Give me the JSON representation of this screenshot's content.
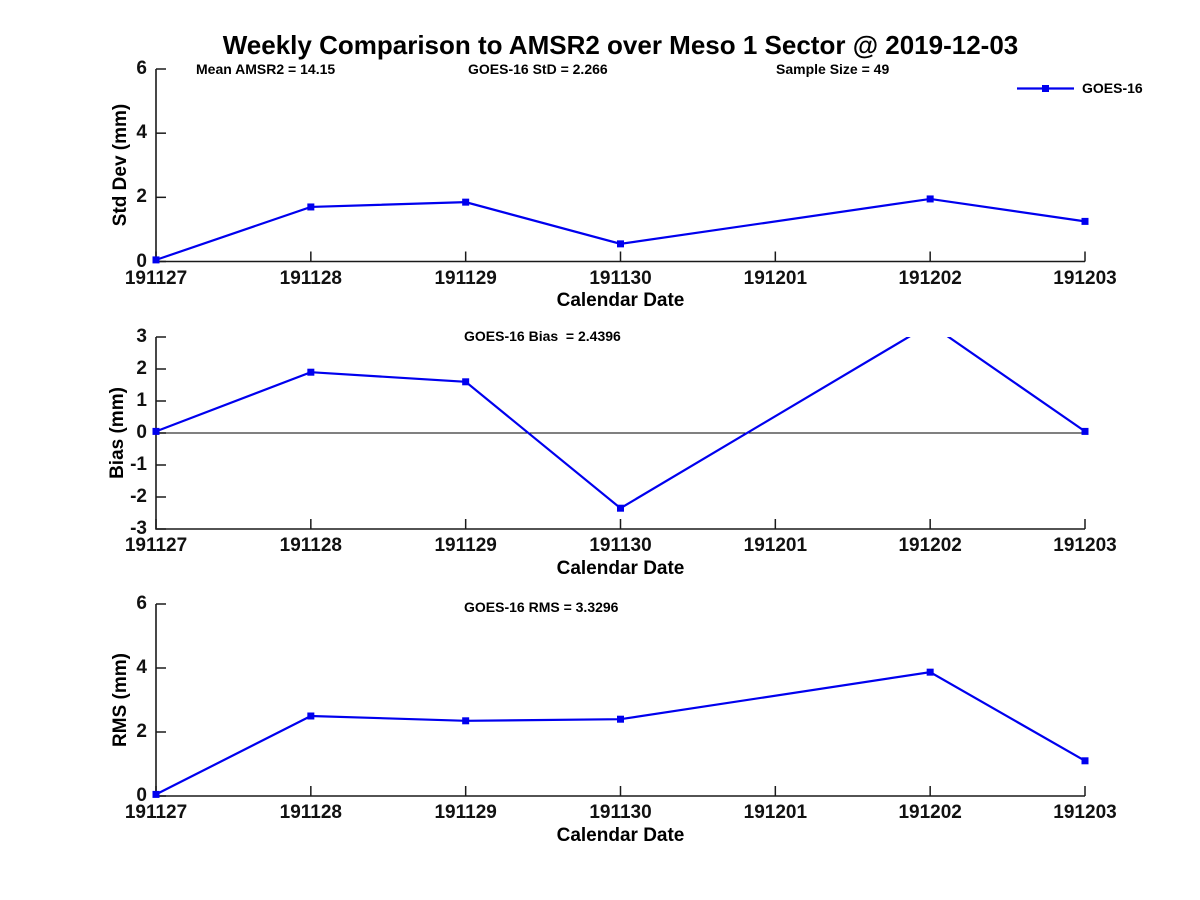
{
  "title": "Weekly Comparison to AMSR2 over Meso 1 Sector @ 2019-12-03",
  "x_axis_label": "Calendar Date",
  "chart_data": [
    {
      "type": "line",
      "name": "std-dev-subplot",
      "annotations": [
        "Mean AMSR2 = 14.15",
        "GOES-16 StD = 2.266",
        "Sample Size = 49"
      ],
      "ylabel": "Std Dev (mm)",
      "xlabel": "Calendar Date",
      "ylim": [
        0,
        6
      ],
      "yticks": [
        0,
        2,
        4,
        6
      ],
      "grid": false,
      "legend_position": "top-right",
      "categories": [
        "191127",
        "191128",
        "191129",
        "191130",
        "191201",
        "191202",
        "191203"
      ],
      "series": [
        {
          "name": "GOES-16",
          "color": "#0000EE",
          "marker": "square",
          "x": [
            "191127",
            "191128",
            "191129",
            "191130",
            "191202",
            "191203"
          ],
          "y": [
            0.05,
            1.7,
            1.85,
            0.55,
            1.95,
            1.25
          ]
        }
      ]
    },
    {
      "type": "line",
      "name": "bias-subplot",
      "annotations": [
        "GOES-16 Bias  = 2.4396"
      ],
      "ylabel": "Bias (mm)",
      "xlabel": "Calendar Date",
      "ylim": [
        -3,
        3
      ],
      "yticks": [
        3,
        2,
        1,
        0,
        -1,
        -2,
        -3
      ],
      "zero_line": true,
      "grid": false,
      "categories": [
        "191127",
        "191128",
        "191129",
        "191130",
        "191201",
        "191202",
        "191203"
      ],
      "series": [
        {
          "name": "GOES-16",
          "color": "#0000EE",
          "marker": "square",
          "x": [
            "191127",
            "191128",
            "191129",
            "191130",
            "191202",
            "191203"
          ],
          "y": [
            0.05,
            1.9,
            1.6,
            -2.35,
            3.4,
            0.05
          ]
        }
      ]
    },
    {
      "type": "line",
      "name": "rms-subplot",
      "annotations": [
        "GOES-16 RMS = 3.3296"
      ],
      "ylabel": "RMS (mm)",
      "xlabel": "Calendar Date",
      "ylim": [
        0,
        6
      ],
      "yticks": [
        0,
        2,
        4,
        6
      ],
      "grid": false,
      "categories": [
        "191127",
        "191128",
        "191129",
        "191130",
        "191201",
        "191202",
        "191203"
      ],
      "series": [
        {
          "name": "GOES-16",
          "color": "#0000EE",
          "marker": "square",
          "x": [
            "191127",
            "191128",
            "191129",
            "191130",
            "191202",
            "191203"
          ],
          "y": [
            0.05,
            2.5,
            2.35,
            2.4,
            3.87,
            1.1
          ]
        }
      ]
    }
  ]
}
